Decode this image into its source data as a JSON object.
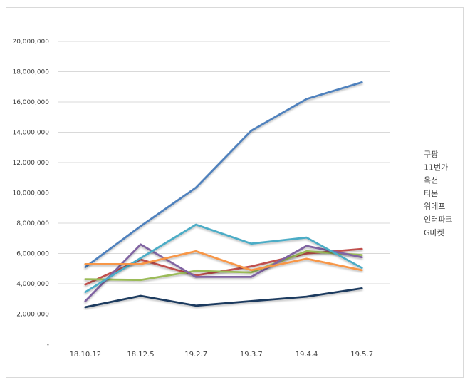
{
  "chart_data": {
    "type": "line",
    "title": "",
    "xlabel": "",
    "ylabel": "",
    "ylim": [
      0,
      20000000
    ],
    "grid": true,
    "legend": "right",
    "categories": [
      "18.10.12",
      "18.12.5",
      "19.2.7",
      "19.3.7",
      "19.4.4",
      "19.5.7"
    ],
    "y_tick_labels": [
      "-",
      "2,000,000",
      "4,000,000",
      "6,000,000",
      "8,000,000",
      "10,000,000",
      "12,000,000",
      "14,000,000",
      "16,000,000",
      "18,000,000",
      "20,000,000"
    ],
    "series": [
      {
        "name": "쿠팡",
        "color": "#4f81bd",
        "values": [
          5100000,
          7800000,
          10350000,
          14100000,
          16200000,
          17300000
        ]
      },
      {
        "name": "11번가",
        "color": "#c0504d",
        "values": [
          3950000,
          5600000,
          4550000,
          5150000,
          6000000,
          6300000
        ]
      },
      {
        "name": "옥션",
        "color": "#9bbb59",
        "values": [
          4300000,
          4250000,
          4850000,
          4750000,
          6150000,
          5900000
        ]
      },
      {
        "name": "티몬",
        "color": "#8064a2",
        "values": [
          2850000,
          6600000,
          4450000,
          4450000,
          6500000,
          5750000
        ]
      },
      {
        "name": "위메프",
        "color": "#4bacc6",
        "values": [
          3450000,
          5700000,
          7900000,
          6650000,
          7050000,
          5050000
        ]
      },
      {
        "name": "인터파크",
        "color": "#f79646",
        "values": [
          5300000,
          5300000,
          6150000,
          4900000,
          5650000,
          4900000
        ]
      },
      {
        "name": "G마켓",
        "color": "#1f3a5f",
        "values": [
          2450000,
          3200000,
          2550000,
          2850000,
          3150000,
          3700000
        ]
      }
    ]
  }
}
